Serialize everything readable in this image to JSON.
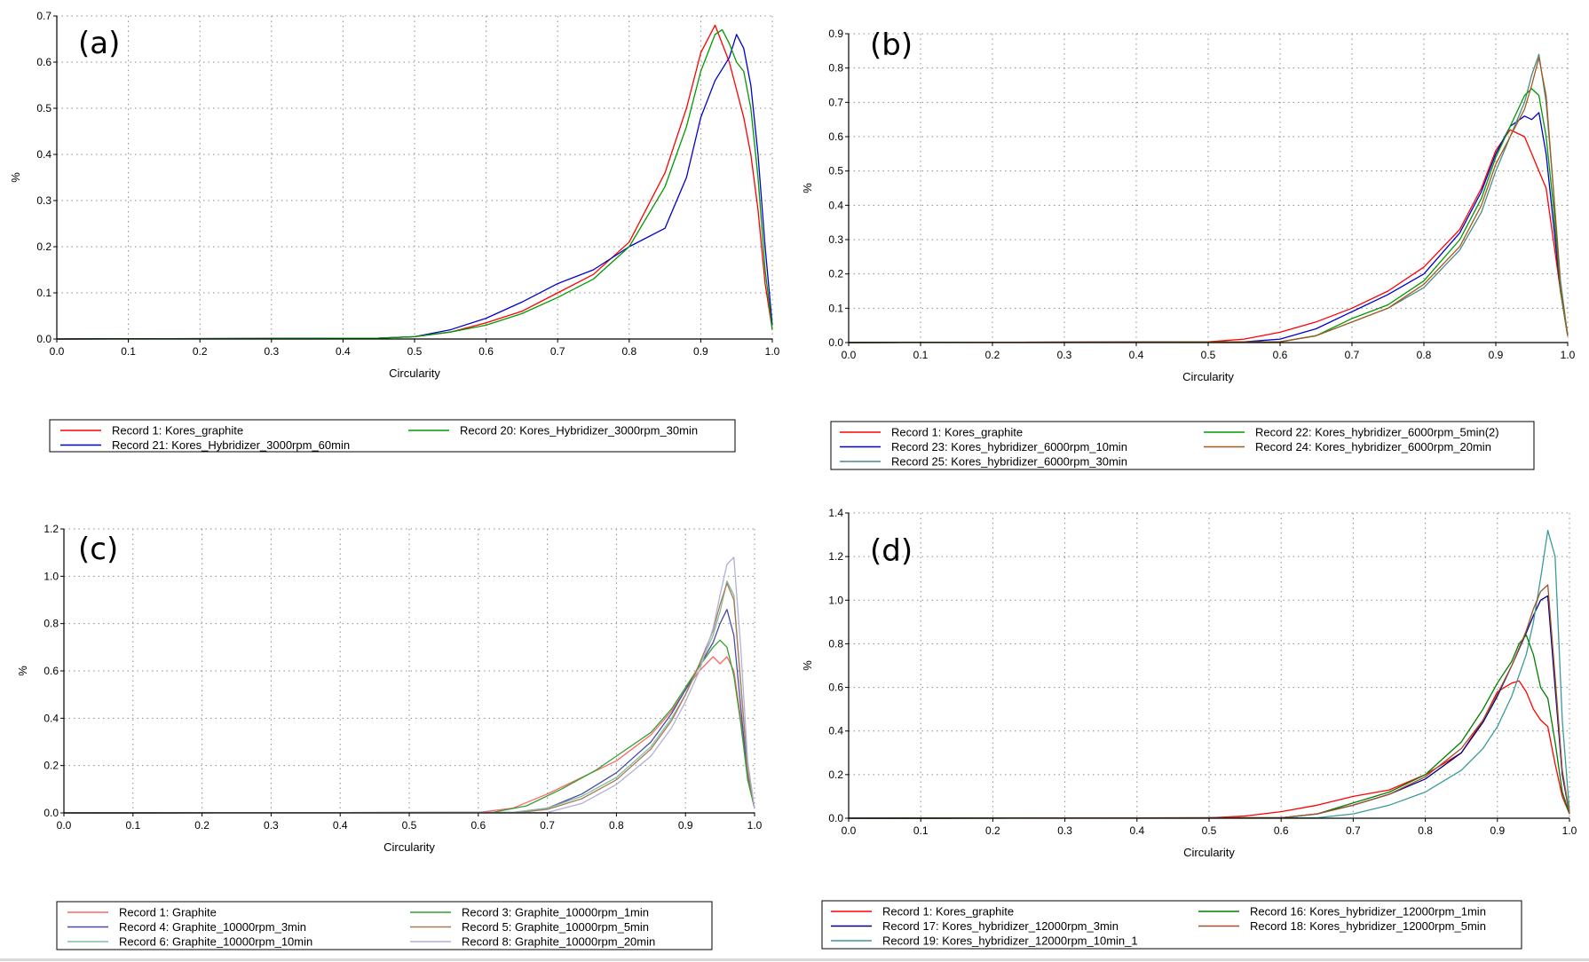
{
  "chart_data": [
    {
      "type": "line",
      "panel_label": "(a)",
      "xlabel": "Circularity",
      "ylabel": "%",
      "xlim": [
        0.0,
        1.0
      ],
      "ylim": [
        0.0,
        0.7
      ],
      "xticks": [
        "0.0",
        "0.1",
        "0.2",
        "0.3",
        "0.4",
        "0.5",
        "0.6",
        "0.7",
        "0.8",
        "0.9",
        "1.0"
      ],
      "yticks": [
        "0.0",
        "0.1",
        "0.2",
        "0.3",
        "0.4",
        "0.5",
        "0.6",
        "0.7"
      ],
      "grid": true,
      "legend_position": "below",
      "series": [
        {
          "name": "Record 1: Kores_graphite",
          "color": "#ff0000",
          "x": [
            0.0,
            0.45,
            0.5,
            0.55,
            0.6,
            0.65,
            0.7,
            0.75,
            0.8,
            0.85,
            0.88,
            0.9,
            0.92,
            0.94,
            0.96,
            0.97,
            0.98,
            0.99,
            1.0
          ],
          "y": [
            0,
            0.002,
            0.005,
            0.015,
            0.035,
            0.06,
            0.1,
            0.14,
            0.21,
            0.36,
            0.5,
            0.62,
            0.68,
            0.6,
            0.48,
            0.4,
            0.28,
            0.12,
            0.02
          ]
        },
        {
          "name": "Record 21: Kores_Hybridizer_3000rpm_60min",
          "color": "#0000cc",
          "x": [
            0.0,
            0.45,
            0.5,
            0.55,
            0.6,
            0.65,
            0.7,
            0.75,
            0.8,
            0.85,
            0.88,
            0.9,
            0.92,
            0.94,
            0.95,
            0.96,
            0.97,
            0.98,
            0.99,
            1.0
          ],
          "y": [
            0,
            0.002,
            0.005,
            0.02,
            0.045,
            0.08,
            0.12,
            0.15,
            0.2,
            0.24,
            0.35,
            0.48,
            0.56,
            0.61,
            0.66,
            0.63,
            0.55,
            0.4,
            0.2,
            0.03
          ]
        },
        {
          "name": "Record 20: Kores_Hybridizer_3000rpm_30min",
          "color": "#009900",
          "x": [
            0.0,
            0.45,
            0.5,
            0.55,
            0.6,
            0.65,
            0.7,
            0.75,
            0.8,
            0.85,
            0.88,
            0.9,
            0.92,
            0.93,
            0.94,
            0.95,
            0.96,
            0.97,
            0.98,
            0.99,
            1.0
          ],
          "y": [
            0,
            0.002,
            0.005,
            0.015,
            0.03,
            0.055,
            0.09,
            0.13,
            0.2,
            0.33,
            0.46,
            0.58,
            0.66,
            0.67,
            0.64,
            0.6,
            0.58,
            0.5,
            0.35,
            0.15,
            0.02
          ]
        }
      ]
    },
    {
      "type": "line",
      "panel_label": "(b)",
      "xlabel": "Circularity",
      "ylabel": "%",
      "xlim": [
        0.0,
        1.0
      ],
      "ylim": [
        0.0,
        0.9
      ],
      "xticks": [
        "0.0",
        "0.1",
        "0.2",
        "0.3",
        "0.4",
        "0.5",
        "0.6",
        "0.7",
        "0.8",
        "0.9",
        "1.0"
      ],
      "yticks": [
        "0.0",
        "0.1",
        "0.2",
        "0.3",
        "0.4",
        "0.5",
        "0.6",
        "0.7",
        "0.8",
        "0.9"
      ],
      "grid": true,
      "legend_position": "below",
      "series": [
        {
          "name": "Record 1: Kores_graphite",
          "color": "#ff0000",
          "x": [
            0.0,
            0.5,
            0.55,
            0.6,
            0.65,
            0.7,
            0.75,
            0.8,
            0.85,
            0.88,
            0.9,
            0.92,
            0.94,
            0.95,
            0.96,
            0.97,
            0.98,
            0.99,
            1.0
          ],
          "y": [
            0,
            0.002,
            0.01,
            0.03,
            0.06,
            0.1,
            0.15,
            0.22,
            0.33,
            0.45,
            0.56,
            0.62,
            0.6,
            0.55,
            0.5,
            0.45,
            0.3,
            0.15,
            0.02
          ]
        },
        {
          "name": "Record 23: Kores_hybridizer_6000rpm_10min",
          "color": "#0000cc",
          "x": [
            0.0,
            0.55,
            0.6,
            0.65,
            0.7,
            0.75,
            0.8,
            0.85,
            0.88,
            0.9,
            0.92,
            0.94,
            0.95,
            0.96,
            0.97,
            0.98,
            0.99,
            1.0
          ],
          "y": [
            0,
            0.002,
            0.01,
            0.04,
            0.09,
            0.14,
            0.2,
            0.32,
            0.44,
            0.55,
            0.63,
            0.66,
            0.65,
            0.67,
            0.55,
            0.35,
            0.15,
            0.02
          ]
        },
        {
          "name": "Record 25: Kores_hybridizer_6000rpm_30min",
          "color": "#4a8a8a",
          "x": [
            0.0,
            0.6,
            0.65,
            0.7,
            0.75,
            0.8,
            0.85,
            0.88,
            0.9,
            0.92,
            0.94,
            0.95,
            0.96,
            0.97,
            0.98,
            0.99,
            1.0
          ],
          "y": [
            0,
            0.002,
            0.02,
            0.06,
            0.1,
            0.16,
            0.27,
            0.38,
            0.5,
            0.6,
            0.7,
            0.78,
            0.84,
            0.7,
            0.45,
            0.18,
            0.02
          ]
        },
        {
          "name": "Record 22: Kores_hybridizer_6000rpm_5min(2)",
          "color": "#009900",
          "x": [
            0.0,
            0.6,
            0.65,
            0.7,
            0.75,
            0.8,
            0.85,
            0.88,
            0.9,
            0.92,
            0.94,
            0.95,
            0.96,
            0.97,
            0.98,
            0.99,
            1.0
          ],
          "y": [
            0,
            0.002,
            0.02,
            0.07,
            0.11,
            0.18,
            0.3,
            0.42,
            0.54,
            0.63,
            0.72,
            0.74,
            0.72,
            0.6,
            0.4,
            0.15,
            0.02
          ]
        },
        {
          "name": "Record 24: Kores_hybridizer_6000rpm_20min",
          "color": "#a05a1e",
          "x": [
            0.0,
            0.6,
            0.65,
            0.7,
            0.75,
            0.8,
            0.85,
            0.88,
            0.9,
            0.92,
            0.94,
            0.95,
            0.96,
            0.97,
            0.98,
            0.99,
            1.0
          ],
          "y": [
            0,
            0.002,
            0.02,
            0.06,
            0.1,
            0.17,
            0.28,
            0.4,
            0.52,
            0.6,
            0.68,
            0.75,
            0.83,
            0.72,
            0.45,
            0.16,
            0.02
          ]
        }
      ]
    },
    {
      "type": "line",
      "panel_label": "(c)",
      "xlabel": "Circularity",
      "ylabel": "%",
      "xlim": [
        0.0,
        1.0
      ],
      "ylim": [
        0.0,
        1.2
      ],
      "xticks": [
        "0.0",
        "0.1",
        "0.2",
        "0.3",
        "0.4",
        "0.5",
        "0.6",
        "0.7",
        "0.8",
        "0.9",
        "1.0"
      ],
      "yticks": [
        "0.0",
        "0.2",
        "0.4",
        "0.6",
        "0.8",
        "1.0",
        "1.2"
      ],
      "grid": true,
      "legend_position": "below",
      "series": [
        {
          "name": "Record 1: Graphite",
          "color": "#ff6666",
          "x": [
            0.0,
            0.6,
            0.65,
            0.7,
            0.75,
            0.8,
            0.85,
            0.88,
            0.9,
            0.92,
            0.94,
            0.95,
            0.96,
            0.97,
            0.98,
            0.99,
            1.0
          ],
          "y": [
            0,
            0.002,
            0.02,
            0.08,
            0.15,
            0.22,
            0.33,
            0.43,
            0.52,
            0.6,
            0.66,
            0.63,
            0.66,
            0.6,
            0.4,
            0.15,
            0.02
          ]
        },
        {
          "name": "Record 4: Graphite_10000rpm_3min",
          "color": "#4a4aa8",
          "x": [
            0.0,
            0.65,
            0.7,
            0.75,
            0.8,
            0.85,
            0.88,
            0.9,
            0.92,
            0.94,
            0.95,
            0.96,
            0.97,
            0.98,
            0.99,
            1.0
          ],
          "y": [
            0,
            0.002,
            0.02,
            0.08,
            0.17,
            0.3,
            0.42,
            0.52,
            0.62,
            0.72,
            0.8,
            0.86,
            0.75,
            0.45,
            0.15,
            0.02
          ]
        },
        {
          "name": "Record 6: Graphite_10000rpm_10min",
          "color": "#7fbf9f",
          "x": [
            0.0,
            0.65,
            0.7,
            0.75,
            0.8,
            0.85,
            0.88,
            0.9,
            0.92,
            0.94,
            0.95,
            0.96,
            0.97,
            0.98,
            0.99,
            1.0
          ],
          "y": [
            0,
            0.002,
            0.02,
            0.07,
            0.15,
            0.28,
            0.4,
            0.5,
            0.62,
            0.75,
            0.85,
            0.98,
            0.92,
            0.55,
            0.18,
            0.02
          ]
        },
        {
          "name": "Record 3: Graphite_10000rpm_1min",
          "color": "#33a033",
          "x": [
            0.0,
            0.62,
            0.67,
            0.72,
            0.77,
            0.8,
            0.85,
            0.88,
            0.9,
            0.92,
            0.94,
            0.95,
            0.96,
            0.97,
            0.98,
            0.99,
            1.0
          ],
          "y": [
            0,
            0.002,
            0.03,
            0.1,
            0.18,
            0.24,
            0.34,
            0.44,
            0.53,
            0.62,
            0.7,
            0.73,
            0.7,
            0.58,
            0.38,
            0.14,
            0.02
          ]
        },
        {
          "name": "Record 5: Graphite_10000rpm_5min",
          "color": "#a87a55",
          "x": [
            0.0,
            0.66,
            0.7,
            0.75,
            0.8,
            0.85,
            0.88,
            0.9,
            0.92,
            0.94,
            0.95,
            0.96,
            0.97,
            0.98,
            0.99,
            1.0
          ],
          "y": [
            0,
            0.002,
            0.015,
            0.06,
            0.14,
            0.27,
            0.39,
            0.5,
            0.63,
            0.77,
            0.88,
            0.97,
            0.9,
            0.55,
            0.18,
            0.02
          ]
        },
        {
          "name": "Record 8: Graphite_10000rpm_20min",
          "color": "#b0b0d8",
          "x": [
            0.0,
            0.7,
            0.75,
            0.8,
            0.85,
            0.88,
            0.9,
            0.92,
            0.94,
            0.95,
            0.96,
            0.97,
            0.98,
            0.99,
            1.0
          ],
          "y": [
            0,
            0.002,
            0.04,
            0.12,
            0.24,
            0.36,
            0.47,
            0.6,
            0.78,
            0.92,
            1.05,
            1.08,
            0.7,
            0.22,
            0.02
          ]
        }
      ]
    },
    {
      "type": "line",
      "panel_label": "(d)",
      "xlabel": "Circularity",
      "ylabel": "%",
      "xlim": [
        0.0,
        1.0
      ],
      "ylim": [
        0.0,
        1.4
      ],
      "xticks": [
        "0.0",
        "0.1",
        "0.2",
        "0.3",
        "0.4",
        "0.5",
        "0.6",
        "0.7",
        "0.8",
        "0.9",
        "1.0"
      ],
      "yticks": [
        "0.0",
        "0.2",
        "0.4",
        "0.6",
        "0.8",
        "1.0",
        "1.2",
        "1.4"
      ],
      "grid": true,
      "legend_position": "below",
      "series": [
        {
          "name": "Record 1: Kores_graphite",
          "color": "#ff0000",
          "x": [
            0.0,
            0.5,
            0.55,
            0.6,
            0.65,
            0.7,
            0.75,
            0.8,
            0.85,
            0.88,
            0.9,
            0.92,
            0.93,
            0.94,
            0.95,
            0.96,
            0.97,
            0.98,
            0.99,
            1.0
          ],
          "y": [
            0,
            0.002,
            0.01,
            0.03,
            0.06,
            0.1,
            0.13,
            0.2,
            0.3,
            0.45,
            0.58,
            0.62,
            0.63,
            0.58,
            0.5,
            0.45,
            0.42,
            0.25,
            0.1,
            0.02
          ]
        },
        {
          "name": "Record 17: Kores_hybridizer_12000rpm_3min",
          "color": "#00008b",
          "x": [
            0.0,
            0.6,
            0.65,
            0.7,
            0.75,
            0.8,
            0.85,
            0.88,
            0.9,
            0.92,
            0.94,
            0.95,
            0.96,
            0.97,
            0.98,
            0.99,
            1.0
          ],
          "y": [
            0,
            0.002,
            0.02,
            0.06,
            0.11,
            0.18,
            0.3,
            0.44,
            0.56,
            0.7,
            0.85,
            0.93,
            1.0,
            1.02,
            0.6,
            0.2,
            0.02
          ]
        },
        {
          "name": "Record 19: Kores_hybridizer_12000rpm_10min_1",
          "color": "#3a9a9a",
          "x": [
            0.0,
            0.65,
            0.7,
            0.75,
            0.8,
            0.85,
            0.88,
            0.9,
            0.92,
            0.94,
            0.95,
            0.96,
            0.97,
            0.98,
            0.99,
            1.0
          ],
          "y": [
            0,
            0.002,
            0.02,
            0.06,
            0.12,
            0.22,
            0.32,
            0.42,
            0.56,
            0.75,
            0.9,
            1.1,
            1.32,
            1.2,
            0.45,
            0.03
          ]
        },
        {
          "name": "Record 16: Kores_hybridizer_12000rpm_1min",
          "color": "#007f00",
          "x": [
            0.0,
            0.6,
            0.65,
            0.7,
            0.75,
            0.8,
            0.85,
            0.88,
            0.9,
            0.92,
            0.93,
            0.94,
            0.95,
            0.96,
            0.97,
            0.98,
            0.99,
            1.0
          ],
          "y": [
            0,
            0.002,
            0.02,
            0.07,
            0.12,
            0.2,
            0.35,
            0.5,
            0.62,
            0.72,
            0.8,
            0.84,
            0.75,
            0.6,
            0.55,
            0.35,
            0.12,
            0.02
          ]
        },
        {
          "name": "Record 18: Kores_hybridizer_12000rpm_5min",
          "color": "#a0522d",
          "x": [
            0.0,
            0.6,
            0.65,
            0.7,
            0.75,
            0.8,
            0.85,
            0.88,
            0.9,
            0.92,
            0.94,
            0.95,
            0.96,
            0.97,
            0.98,
            0.99,
            1.0
          ],
          "y": [
            0,
            0.002,
            0.02,
            0.06,
            0.11,
            0.19,
            0.32,
            0.45,
            0.57,
            0.7,
            0.86,
            0.96,
            1.04,
            1.07,
            0.65,
            0.22,
            0.02
          ]
        }
      ]
    }
  ]
}
